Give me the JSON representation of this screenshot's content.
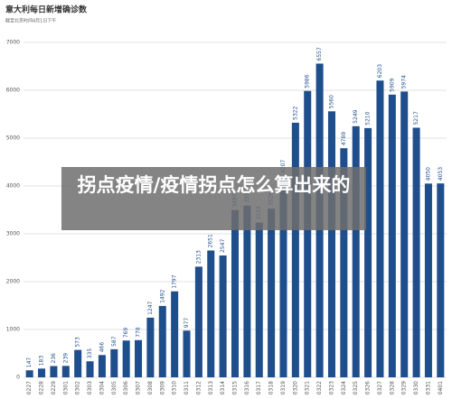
{
  "chart_data": {
    "type": "bar",
    "title": "意大利每日新增确诊数",
    "subtitle": "截至北京时间4月1日下午",
    "categories": [
      "0227",
      "0228",
      "0229",
      "0301",
      "0302",
      "0303",
      "0304",
      "0305",
      "0306",
      "0307",
      "0308",
      "0309",
      "0310",
      "0311",
      "0312",
      "0313",
      "0314",
      "0315",
      "0316",
      "0317",
      "0318",
      "0319",
      "0320",
      "0321",
      "0322",
      "0323",
      "0324",
      "0325",
      "0326",
      "0327",
      "0328",
      "0329",
      "0330",
      "0331",
      "0401"
    ],
    "values": [
      147,
      183,
      236,
      239,
      573,
      335,
      466,
      587,
      769,
      778,
      1247,
      1492,
      1797,
      977,
      2313,
      2651,
      2547,
      3497,
      3590,
      3233,
      3526,
      4207,
      5322,
      5986,
      6557,
      5560,
      4789,
      5249,
      5210,
      6203,
      5909,
      5974,
      5217,
      4050,
      4053
    ],
    "color": "#1f4e8c",
    "ylim": [
      0,
      7000
    ],
    "yticks": [
      0,
      1000,
      2000,
      3000,
      4000,
      5000,
      6000,
      7000
    ],
    "grid": true
  },
  "overlay_title": "拐点疫情/疫情拐点怎么算出来的"
}
